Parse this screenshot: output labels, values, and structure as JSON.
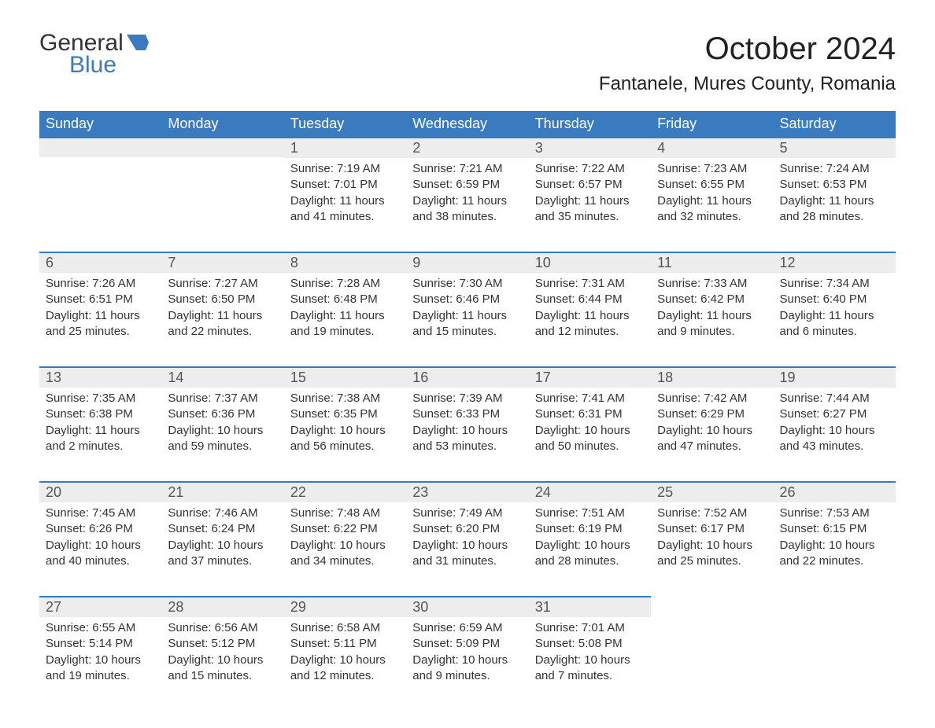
{
  "logo": {
    "text1": "General",
    "text2": "Blue"
  },
  "title": "October 2024",
  "location": "Fantanele, Mures County, Romania",
  "colors": {
    "header_bg": "#3a7bbf",
    "header_text": "#ffffff",
    "daynum_bg": "#ededed",
    "border_top": "#3a7bbf",
    "body_text": "#333333",
    "logo_blue": "#3a7bbf"
  },
  "daysOfWeek": [
    "Sunday",
    "Monday",
    "Tuesday",
    "Wednesday",
    "Thursday",
    "Friday",
    "Saturday"
  ],
  "labels": {
    "sunrise": "Sunrise:",
    "sunset": "Sunset:",
    "daylight": "Daylight:"
  },
  "weeks": [
    [
      null,
      null,
      {
        "n": "1",
        "sr": "7:19 AM",
        "ss": "7:01 PM",
        "dl": "11 hours and 41 minutes."
      },
      {
        "n": "2",
        "sr": "7:21 AM",
        "ss": "6:59 PM",
        "dl": "11 hours and 38 minutes."
      },
      {
        "n": "3",
        "sr": "7:22 AM",
        "ss": "6:57 PM",
        "dl": "11 hours and 35 minutes."
      },
      {
        "n": "4",
        "sr": "7:23 AM",
        "ss": "6:55 PM",
        "dl": "11 hours and 32 minutes."
      },
      {
        "n": "5",
        "sr": "7:24 AM",
        "ss": "6:53 PM",
        "dl": "11 hours and 28 minutes."
      }
    ],
    [
      {
        "n": "6",
        "sr": "7:26 AM",
        "ss": "6:51 PM",
        "dl": "11 hours and 25 minutes."
      },
      {
        "n": "7",
        "sr": "7:27 AM",
        "ss": "6:50 PM",
        "dl": "11 hours and 22 minutes."
      },
      {
        "n": "8",
        "sr": "7:28 AM",
        "ss": "6:48 PM",
        "dl": "11 hours and 19 minutes."
      },
      {
        "n": "9",
        "sr": "7:30 AM",
        "ss": "6:46 PM",
        "dl": "11 hours and 15 minutes."
      },
      {
        "n": "10",
        "sr": "7:31 AM",
        "ss": "6:44 PM",
        "dl": "11 hours and 12 minutes."
      },
      {
        "n": "11",
        "sr": "7:33 AM",
        "ss": "6:42 PM",
        "dl": "11 hours and 9 minutes."
      },
      {
        "n": "12",
        "sr": "7:34 AM",
        "ss": "6:40 PM",
        "dl": "11 hours and 6 minutes."
      }
    ],
    [
      {
        "n": "13",
        "sr": "7:35 AM",
        "ss": "6:38 PM",
        "dl": "11 hours and 2 minutes."
      },
      {
        "n": "14",
        "sr": "7:37 AM",
        "ss": "6:36 PM",
        "dl": "10 hours and 59 minutes."
      },
      {
        "n": "15",
        "sr": "7:38 AM",
        "ss": "6:35 PM",
        "dl": "10 hours and 56 minutes."
      },
      {
        "n": "16",
        "sr": "7:39 AM",
        "ss": "6:33 PM",
        "dl": "10 hours and 53 minutes."
      },
      {
        "n": "17",
        "sr": "7:41 AM",
        "ss": "6:31 PM",
        "dl": "10 hours and 50 minutes."
      },
      {
        "n": "18",
        "sr": "7:42 AM",
        "ss": "6:29 PM",
        "dl": "10 hours and 47 minutes."
      },
      {
        "n": "19",
        "sr": "7:44 AM",
        "ss": "6:27 PM",
        "dl": "10 hours and 43 minutes."
      }
    ],
    [
      {
        "n": "20",
        "sr": "7:45 AM",
        "ss": "6:26 PM",
        "dl": "10 hours and 40 minutes."
      },
      {
        "n": "21",
        "sr": "7:46 AM",
        "ss": "6:24 PM",
        "dl": "10 hours and 37 minutes."
      },
      {
        "n": "22",
        "sr": "7:48 AM",
        "ss": "6:22 PM",
        "dl": "10 hours and 34 minutes."
      },
      {
        "n": "23",
        "sr": "7:49 AM",
        "ss": "6:20 PM",
        "dl": "10 hours and 31 minutes."
      },
      {
        "n": "24",
        "sr": "7:51 AM",
        "ss": "6:19 PM",
        "dl": "10 hours and 28 minutes."
      },
      {
        "n": "25",
        "sr": "7:52 AM",
        "ss": "6:17 PM",
        "dl": "10 hours and 25 minutes."
      },
      {
        "n": "26",
        "sr": "7:53 AM",
        "ss": "6:15 PM",
        "dl": "10 hours and 22 minutes."
      }
    ],
    [
      {
        "n": "27",
        "sr": "6:55 AM",
        "ss": "5:14 PM",
        "dl": "10 hours and 19 minutes."
      },
      {
        "n": "28",
        "sr": "6:56 AM",
        "ss": "5:12 PM",
        "dl": "10 hours and 15 minutes."
      },
      {
        "n": "29",
        "sr": "6:58 AM",
        "ss": "5:11 PM",
        "dl": "10 hours and 12 minutes."
      },
      {
        "n": "30",
        "sr": "6:59 AM",
        "ss": "5:09 PM",
        "dl": "10 hours and 9 minutes."
      },
      {
        "n": "31",
        "sr": "7:01 AM",
        "ss": "5:08 PM",
        "dl": "10 hours and 7 minutes."
      },
      null,
      null
    ]
  ]
}
